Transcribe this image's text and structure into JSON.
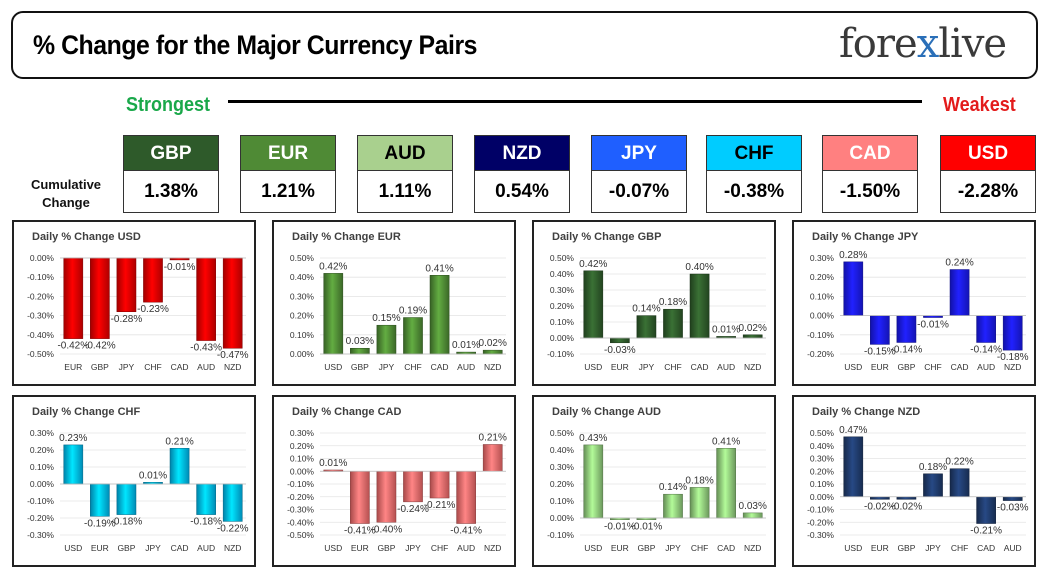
{
  "header": {
    "title": "% Change for the Major Currency Pairs",
    "logo_pre": "fore",
    "logo_x": "x",
    "logo_post": "live"
  },
  "ranking": {
    "strongest_label": "Strongest",
    "weakest_label": "Weakest",
    "cumulative_label_1": "Cumulative",
    "cumulative_label_2": "Change",
    "currencies": [
      {
        "code": "GBP",
        "value": "1.38%",
        "color": "#2e5a2a",
        "text": "#ffffff"
      },
      {
        "code": "EUR",
        "value": "1.21%",
        "color": "#4f8a35",
        "text": "#ffffff"
      },
      {
        "code": "AUD",
        "value": "1.11%",
        "color": "#a9d08e",
        "text": "#000000"
      },
      {
        "code": "NZD",
        "value": "0.54%",
        "color": "#000066",
        "text": "#ffffff"
      },
      {
        "code": "JPY",
        "value": "-0.07%",
        "color": "#1f5fff",
        "text": "#ffffff"
      },
      {
        "code": "CHF",
        "value": "-0.38%",
        "color": "#00ccff",
        "text": "#000000"
      },
      {
        "code": "CAD",
        "value": "-1.50%",
        "color": "#ff8080",
        "text": "#ffffff"
      },
      {
        "code": "USD",
        "value": "-2.28%",
        "color": "#ff0000",
        "text": "#ffffff"
      }
    ]
  },
  "chart_data": [
    {
      "type": "bar",
      "title": "Daily % Change USD",
      "color": "#e60000",
      "categories": [
        "EUR",
        "GBP",
        "JPY",
        "CHF",
        "CAD",
        "AUD",
        "NZD"
      ],
      "values": [
        -0.42,
        -0.42,
        -0.28,
        -0.23,
        -0.01,
        -0.43,
        -0.47
      ],
      "labels": [
        "-0.42%",
        "-0.42%",
        "-0.28%",
        "-0.23%",
        "-0.01%",
        "-0.43%",
        "-0.47%"
      ],
      "ticks": [
        0.0,
        -0.1,
        -0.2,
        -0.3,
        -0.4,
        -0.5
      ],
      "tick_labels": [
        "0.00%",
        "-0.10%",
        "-0.20%",
        "-0.30%",
        "-0.40%",
        "-0.50%"
      ],
      "ylim": [
        -0.5,
        0.0
      ]
    },
    {
      "type": "bar",
      "title": "Daily % Change EUR",
      "color": "#4f8a35",
      "categories": [
        "USD",
        "GBP",
        "JPY",
        "CHF",
        "CAD",
        "AUD",
        "NZD"
      ],
      "values": [
        0.42,
        0.03,
        0.15,
        0.19,
        0.41,
        0.01,
        0.02
      ],
      "labels": [
        "0.42%",
        "0.03%",
        "0.15%",
        "0.19%",
        "0.41%",
        "0.01%",
        "0.02%"
      ],
      "ticks": [
        0.5,
        0.4,
        0.3,
        0.2,
        0.1,
        0.0
      ],
      "tick_labels": [
        "0.50%",
        "0.40%",
        "0.30%",
        "0.20%",
        "0.10%",
        "0.00%"
      ],
      "ylim": [
        0.0,
        0.5
      ]
    },
    {
      "type": "bar",
      "title": "Daily % Change GBP",
      "color": "#2e5a2a",
      "categories": [
        "USD",
        "EUR",
        "JPY",
        "CHF",
        "CAD",
        "AUD",
        "NZD"
      ],
      "values": [
        0.42,
        -0.03,
        0.14,
        0.18,
        0.4,
        0.01,
        0.02
      ],
      "labels": [
        "0.42%",
        "-0.03%",
        "0.14%",
        "0.18%",
        "0.40%",
        "0.01%",
        "0.02%"
      ],
      "ticks": [
        0.5,
        0.4,
        0.3,
        0.2,
        0.1,
        0.0,
        -0.1
      ],
      "tick_labels": [
        "0.50%",
        "0.40%",
        "0.30%",
        "0.20%",
        "0.10%",
        "0.00%",
        "-0.10%"
      ],
      "ylim": [
        -0.1,
        0.5
      ]
    },
    {
      "type": "bar",
      "title": "Daily % Change JPY",
      "color": "#1a1aee",
      "categories": [
        "USD",
        "EUR",
        "GBP",
        "CHF",
        "CAD",
        "AUD",
        "NZD"
      ],
      "values": [
        0.28,
        -0.15,
        -0.14,
        -0.01,
        0.24,
        -0.14,
        -0.18
      ],
      "labels": [
        "0.28%",
        "-0.15%",
        "-0.14%",
        "-0.01%",
        "0.24%",
        "-0.14%",
        "-0.18%"
      ],
      "ticks": [
        0.3,
        0.2,
        0.1,
        0.0,
        -0.1,
        -0.2
      ],
      "tick_labels": [
        "0.30%",
        "0.20%",
        "0.10%",
        "0.00%",
        "-0.10%",
        "-0.20%"
      ],
      "ylim": [
        -0.2,
        0.3
      ]
    },
    {
      "type": "bar",
      "title": "Daily % Change CHF",
      "color": "#00b8f0",
      "categories": [
        "USD",
        "EUR",
        "GBP",
        "JPY",
        "CAD",
        "AUD",
        "NZD"
      ],
      "values": [
        0.23,
        -0.19,
        -0.18,
        0.01,
        0.21,
        -0.18,
        -0.22
      ],
      "labels": [
        "0.23%",
        "-0.19%",
        "-0.18%",
        "0.01%",
        "0.21%",
        "-0.18%",
        "-0.22%"
      ],
      "ticks": [
        0.3,
        0.2,
        0.1,
        0.0,
        -0.1,
        -0.2,
        -0.3
      ],
      "tick_labels": [
        "0.30%",
        "0.20%",
        "0.10%",
        "0.00%",
        "-0.10%",
        "-0.20%",
        "-0.30%"
      ],
      "ylim": [
        -0.3,
        0.3
      ]
    },
    {
      "type": "bar",
      "title": "Daily % Change CAD",
      "color": "#f06a6a",
      "categories": [
        "USD",
        "EUR",
        "GBP",
        "JPY",
        "CHF",
        "AUD",
        "NZD"
      ],
      "values": [
        0.01,
        -0.41,
        -0.4,
        -0.24,
        -0.21,
        -0.41,
        0.21
      ],
      "labels": [
        "0.01%",
        "-0.41%",
        "-0.40%",
        "-0.24%",
        "-0.21%",
        "-0.41%",
        "0.21%"
      ],
      "ticks": [
        0.3,
        0.2,
        0.1,
        0.0,
        -0.1,
        -0.2,
        -0.3,
        -0.4,
        -0.5
      ],
      "tick_labels": [
        "0.30%",
        "0.20%",
        "0.10%",
        "0.00%",
        "-0.10%",
        "-0.20%",
        "-0.30%",
        "-0.40%",
        "-0.50%"
      ],
      "ylim": [
        -0.5,
        0.3
      ]
    },
    {
      "type": "bar",
      "title": "Daily % Change AUD",
      "color": "#8fc97a",
      "categories": [
        "USD",
        "EUR",
        "GBP",
        "JPY",
        "CHF",
        "CAD",
        "NZD"
      ],
      "values": [
        0.43,
        -0.01,
        -0.01,
        0.14,
        0.18,
        0.41,
        0.03
      ],
      "labels": [
        "0.43%",
        "-0.01%",
        "-0.01%",
        "0.14%",
        "0.18%",
        "0.41%",
        "0.03%"
      ],
      "ticks": [
        0.5,
        0.4,
        0.3,
        0.2,
        0.1,
        0.0,
        -0.1
      ],
      "tick_labels": [
        "0.50%",
        "0.40%",
        "0.30%",
        "0.20%",
        "0.10%",
        "0.00%",
        "-0.10%"
      ],
      "ylim": [
        -0.1,
        0.5
      ]
    },
    {
      "type": "bar",
      "title": "Daily % Change NZD",
      "color": "#1f3a6a",
      "categories": [
        "USD",
        "EUR",
        "GBP",
        "JPY",
        "CHF",
        "CAD",
        "AUD"
      ],
      "values": [
        0.47,
        -0.02,
        -0.02,
        0.18,
        0.22,
        -0.21,
        -0.03
      ],
      "labels": [
        "0.47%",
        "-0.02%",
        "-0.02%",
        "0.18%",
        "0.22%",
        "-0.21%",
        "-0.03%"
      ],
      "ticks": [
        0.5,
        0.4,
        0.3,
        0.2,
        0.1,
        0.0,
        -0.1,
        -0.2,
        -0.3
      ],
      "tick_labels": [
        "0.50%",
        "0.40%",
        "0.30%",
        "0.20%",
        "0.10%",
        "0.00%",
        "-0.10%",
        "-0.20%",
        "-0.30%"
      ],
      "ylim": [
        -0.3,
        0.5
      ]
    }
  ]
}
